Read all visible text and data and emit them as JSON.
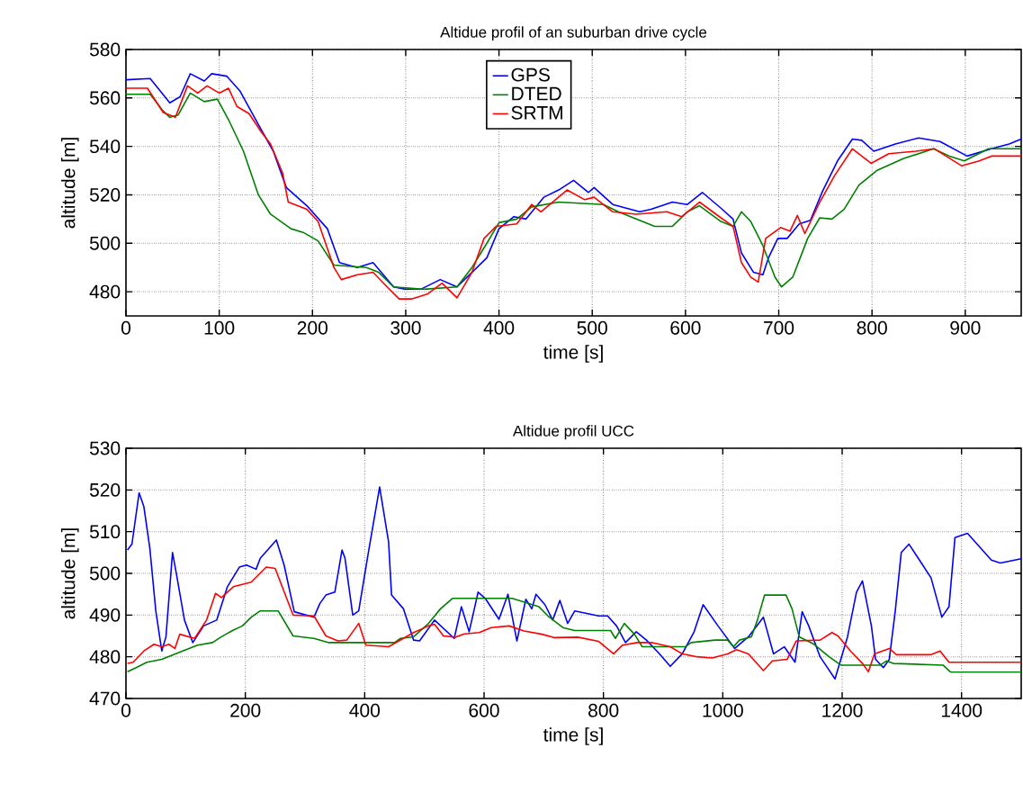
{
  "chart_data": [
    {
      "type": "line",
      "title": "Altidue profil of an suburban drive cycle",
      "xlabel": "time [s]",
      "ylabel": "altitude [m]",
      "xlim": [
        0,
        960
      ],
      "ylim": [
        470,
        580
      ],
      "xticks": [
        0,
        100,
        200,
        300,
        400,
        500,
        600,
        700,
        800,
        900
      ],
      "yticks": [
        480,
        500,
        520,
        540,
        560,
        580
      ],
      "grid": true,
      "legend": "top",
      "series": [
        {
          "name": "GPS",
          "color": "#0000ff",
          "x": [
            0,
            26,
            47,
            58,
            69,
            84,
            92,
            108,
            122,
            142,
            158,
            172,
            194,
            216,
            229,
            248,
            265,
            287,
            300,
            316,
            337,
            355,
            371,
            387,
            400,
            416,
            429,
            448,
            464,
            480,
            496,
            502,
            522,
            551,
            563,
            586,
            602,
            618,
            638,
            651,
            660,
            673,
            683,
            689,
            699,
            709,
            722,
            734,
            747,
            763,
            779,
            789,
            802,
            825,
            850,
            873,
            902,
            928,
            947,
            960
          ],
          "values": [
            567.5,
            568,
            558,
            560.5,
            570,
            567,
            570,
            569,
            563,
            549,
            538,
            523,
            515.5,
            506,
            492,
            490,
            492,
            482,
            481,
            481,
            485,
            482,
            488,
            494,
            506,
            511,
            510,
            519,
            522,
            526,
            521,
            523,
            516,
            513,
            514,
            517,
            516,
            521,
            514.5,
            510,
            496,
            488,
            487,
            494,
            502,
            502,
            508,
            509.5,
            521.5,
            534,
            543,
            542.5,
            538,
            541,
            543.5,
            542,
            536,
            539,
            541,
            543
          ]
        },
        {
          "name": "DTED",
          "color": "#008000",
          "x": [
            0,
            26,
            39,
            47,
            56,
            69,
            84,
            98,
            110,
            126,
            142,
            155,
            177,
            190,
            206,
            223,
            258,
            271,
            287,
            319,
            355,
            371,
            387,
            400,
            419,
            435,
            464,
            512,
            528,
            567,
            586,
            602,
            615,
            638,
            651,
            660,
            670,
            683,
            696,
            703,
            715,
            731,
            744,
            757,
            770,
            786,
            805,
            834,
            866,
            883,
            899,
            925,
            960
          ],
          "values": [
            561.5,
            561.5,
            555,
            552,
            553,
            562,
            558.5,
            559.5,
            551,
            538,
            520,
            512,
            506,
            504.5,
            501,
            491,
            490,
            488,
            482,
            481,
            482,
            490,
            500,
            508.5,
            510,
            515,
            517,
            516,
            513,
            507,
            507,
            513,
            515.5,
            509,
            507,
            513,
            509,
            499,
            486,
            482,
            486,
            502,
            510.5,
            510,
            514,
            524,
            530,
            535,
            539,
            536,
            534,
            539,
            539
          ]
        },
        {
          "name": "SRTM",
          "color": "#ff0000",
          "x": [
            0,
            23,
            40,
            53,
            66,
            77,
            87,
            100,
            110,
            119,
            132,
            145,
            155,
            168,
            174,
            194,
            206,
            223,
            231,
            248,
            265,
            280,
            293,
            306,
            323,
            339,
            355,
            371,
            384,
            397,
            419,
            435,
            445,
            473,
            492,
            502,
            522,
            547,
            580,
            596,
            615,
            638,
            651,
            660,
            670,
            678,
            686,
            702,
            712,
            720,
            728,
            744,
            760,
            779,
            799,
            818,
            847,
            867,
            896,
            915,
            928,
            960
          ],
          "values": [
            564,
            564,
            554,
            552,
            565,
            562,
            565,
            562,
            564,
            556.5,
            553.5,
            546,
            541,
            529,
            517,
            514,
            509,
            490,
            485,
            487,
            488,
            482,
            477,
            477,
            479,
            483.5,
            477.5,
            488,
            502,
            507,
            508,
            516,
            513,
            522,
            518,
            519,
            513,
            512,
            513,
            511,
            517,
            510.5,
            507,
            492,
            486,
            484,
            502,
            506.5,
            505,
            511.5,
            504,
            517,
            528,
            539,
            533,
            537,
            538,
            539,
            532,
            534,
            536,
            536
          ]
        }
      ]
    },
    {
      "type": "line",
      "title": "Altidue profil UCC",
      "xlabel": "time [s]",
      "ylabel": "altitude [m]",
      "xlim": [
        0,
        1500
      ],
      "ylim": [
        470,
        530
      ],
      "xticks": [
        0,
        200,
        400,
        600,
        800,
        1000,
        1200,
        1400
      ],
      "yticks": [
        470,
        480,
        490,
        500,
        510,
        520,
        530
      ],
      "grid": true,
      "series": [
        {
          "color": "#0000ff",
          "x": [
            2.5,
            10,
            22,
            30,
            40,
            50,
            60,
            67,
            78,
            85,
            98,
            112,
            130,
            152,
            170,
            190,
            202,
            218,
            225,
            252,
            265,
            282,
            315,
            325,
            335,
            350,
            362,
            367,
            380,
            390,
            405,
            425,
            440,
            445,
            465,
            482,
            492,
            517,
            550,
            562,
            575,
            590,
            602,
            625,
            640,
            655,
            670,
            680,
            687,
            702,
            715,
            727,
            740,
            752,
            792,
            807,
            822,
            837,
            855,
            872,
            892,
            912,
            932,
            952,
            967,
            992,
            1020,
            1043,
            1068,
            1085,
            1103,
            1121,
            1133,
            1144,
            1163,
            1188,
            1209,
            1224,
            1234,
            1249,
            1256,
            1269,
            1279,
            1289,
            1299,
            1312,
            1334,
            1349,
            1367,
            1379,
            1389,
            1410,
            1450,
            1465,
            1500
          ],
          "values": [
            505.6,
            507,
            519.3,
            516,
            506,
            491,
            481.4,
            484.8,
            505,
            499.5,
            488.8,
            483.4,
            487.4,
            488.8,
            496.8,
            501.5,
            502,
            501,
            503.6,
            508,
            502,
            490.8,
            489.5,
            492.8,
            494.8,
            495.5,
            505.6,
            503.6,
            490,
            491,
            504,
            520.7,
            507.6,
            494.8,
            491.5,
            484,
            483.8,
            488.8,
            484.4,
            492,
            486,
            495.5,
            494,
            489,
            495,
            483.8,
            493.8,
            491.5,
            495,
            492.5,
            488.8,
            493.5,
            488,
            491,
            489.8,
            489.8,
            487.4,
            483.4,
            486,
            484,
            481,
            477.7,
            480.7,
            486,
            492.5,
            487.4,
            482,
            484.8,
            489.5,
            480.7,
            482.4,
            478.7,
            490.8,
            487.4,
            480,
            474.7,
            484.8,
            495.5,
            498.2,
            487.4,
            479.4,
            477.4,
            479.4,
            491,
            505,
            507,
            502.2,
            498.9,
            489.5,
            492,
            508.6,
            509.6,
            503.2,
            502.5,
            503.5
          ]
        },
        {
          "color": "#008000",
          "x": [
            2.5,
            17,
            35,
            60,
            95,
            120,
            145,
            160,
            180,
            195,
            210,
            225,
            255,
            280,
            315,
            340,
            450,
            460,
            482,
            507,
            527,
            547,
            647,
            692,
            707,
            732,
            752,
            812,
            820,
            835,
            852,
            865,
            937,
            947,
            987,
            1008,
            1018,
            1028,
            1048,
            1058,
            1070,
            1106,
            1116,
            1128,
            1153,
            1178,
            1198,
            1264,
            1274,
            1286,
            1369,
            1382,
            1500
          ],
          "values": [
            476.4,
            477.4,
            478.7,
            479.4,
            481.4,
            482.8,
            483.4,
            484.8,
            486.4,
            487.4,
            489.5,
            491,
            491,
            485,
            484.4,
            483.4,
            483.4,
            484.4,
            484.8,
            488,
            491.5,
            494,
            494,
            492,
            489.8,
            487,
            486.3,
            486.3,
            484.4,
            488,
            485.4,
            482.4,
            482.4,
            483.4,
            484,
            484,
            482.4,
            484,
            484.8,
            488.8,
            494.8,
            494.8,
            491.5,
            484.8,
            483,
            480,
            478,
            478,
            479,
            478.4,
            478,
            476.3,
            476.3
          ]
        },
        {
          "color": "#ff0000",
          "x": [
            2.5,
            12,
            30,
            47,
            60,
            72,
            82,
            90,
            115,
            135,
            150,
            160,
            180,
            210,
            235,
            250,
            280,
            315,
            335,
            355,
            370,
            390,
            402,
            440,
            482,
            507,
            517,
            532,
            552,
            567,
            592,
            612,
            642,
            667,
            697,
            717,
            757,
            792,
            817,
            832,
            857,
            882,
            912,
            932,
            957,
            982,
            1008,
            1023,
            1043,
            1068,
            1083,
            1108,
            1123,
            1163,
            1183,
            1193,
            1214,
            1234,
            1244,
            1254,
            1279,
            1291,
            1349,
            1364,
            1379,
            1500
          ],
          "values": [
            478.4,
            478.7,
            481.4,
            483,
            482.4,
            483,
            482,
            485.4,
            484.4,
            488.8,
            495.2,
            494.2,
            496.8,
            497.9,
            501.5,
            501.2,
            490,
            489.8,
            485,
            483.8,
            484,
            488,
            482.8,
            482.4,
            485.8,
            487.4,
            487.8,
            485,
            484.7,
            485.5,
            485.8,
            487,
            487.4,
            486.2,
            485.4,
            484.6,
            484.7,
            483.7,
            480.7,
            482.8,
            483.4,
            483.4,
            482.4,
            480.7,
            480,
            479.7,
            480.7,
            481.7,
            480.7,
            476.7,
            479,
            479.4,
            483.8,
            484,
            485.8,
            485,
            481.4,
            478.4,
            476.4,
            480.7,
            482,
            480.5,
            480.5,
            481.4,
            478.7,
            478.7
          ]
        }
      ]
    }
  ]
}
